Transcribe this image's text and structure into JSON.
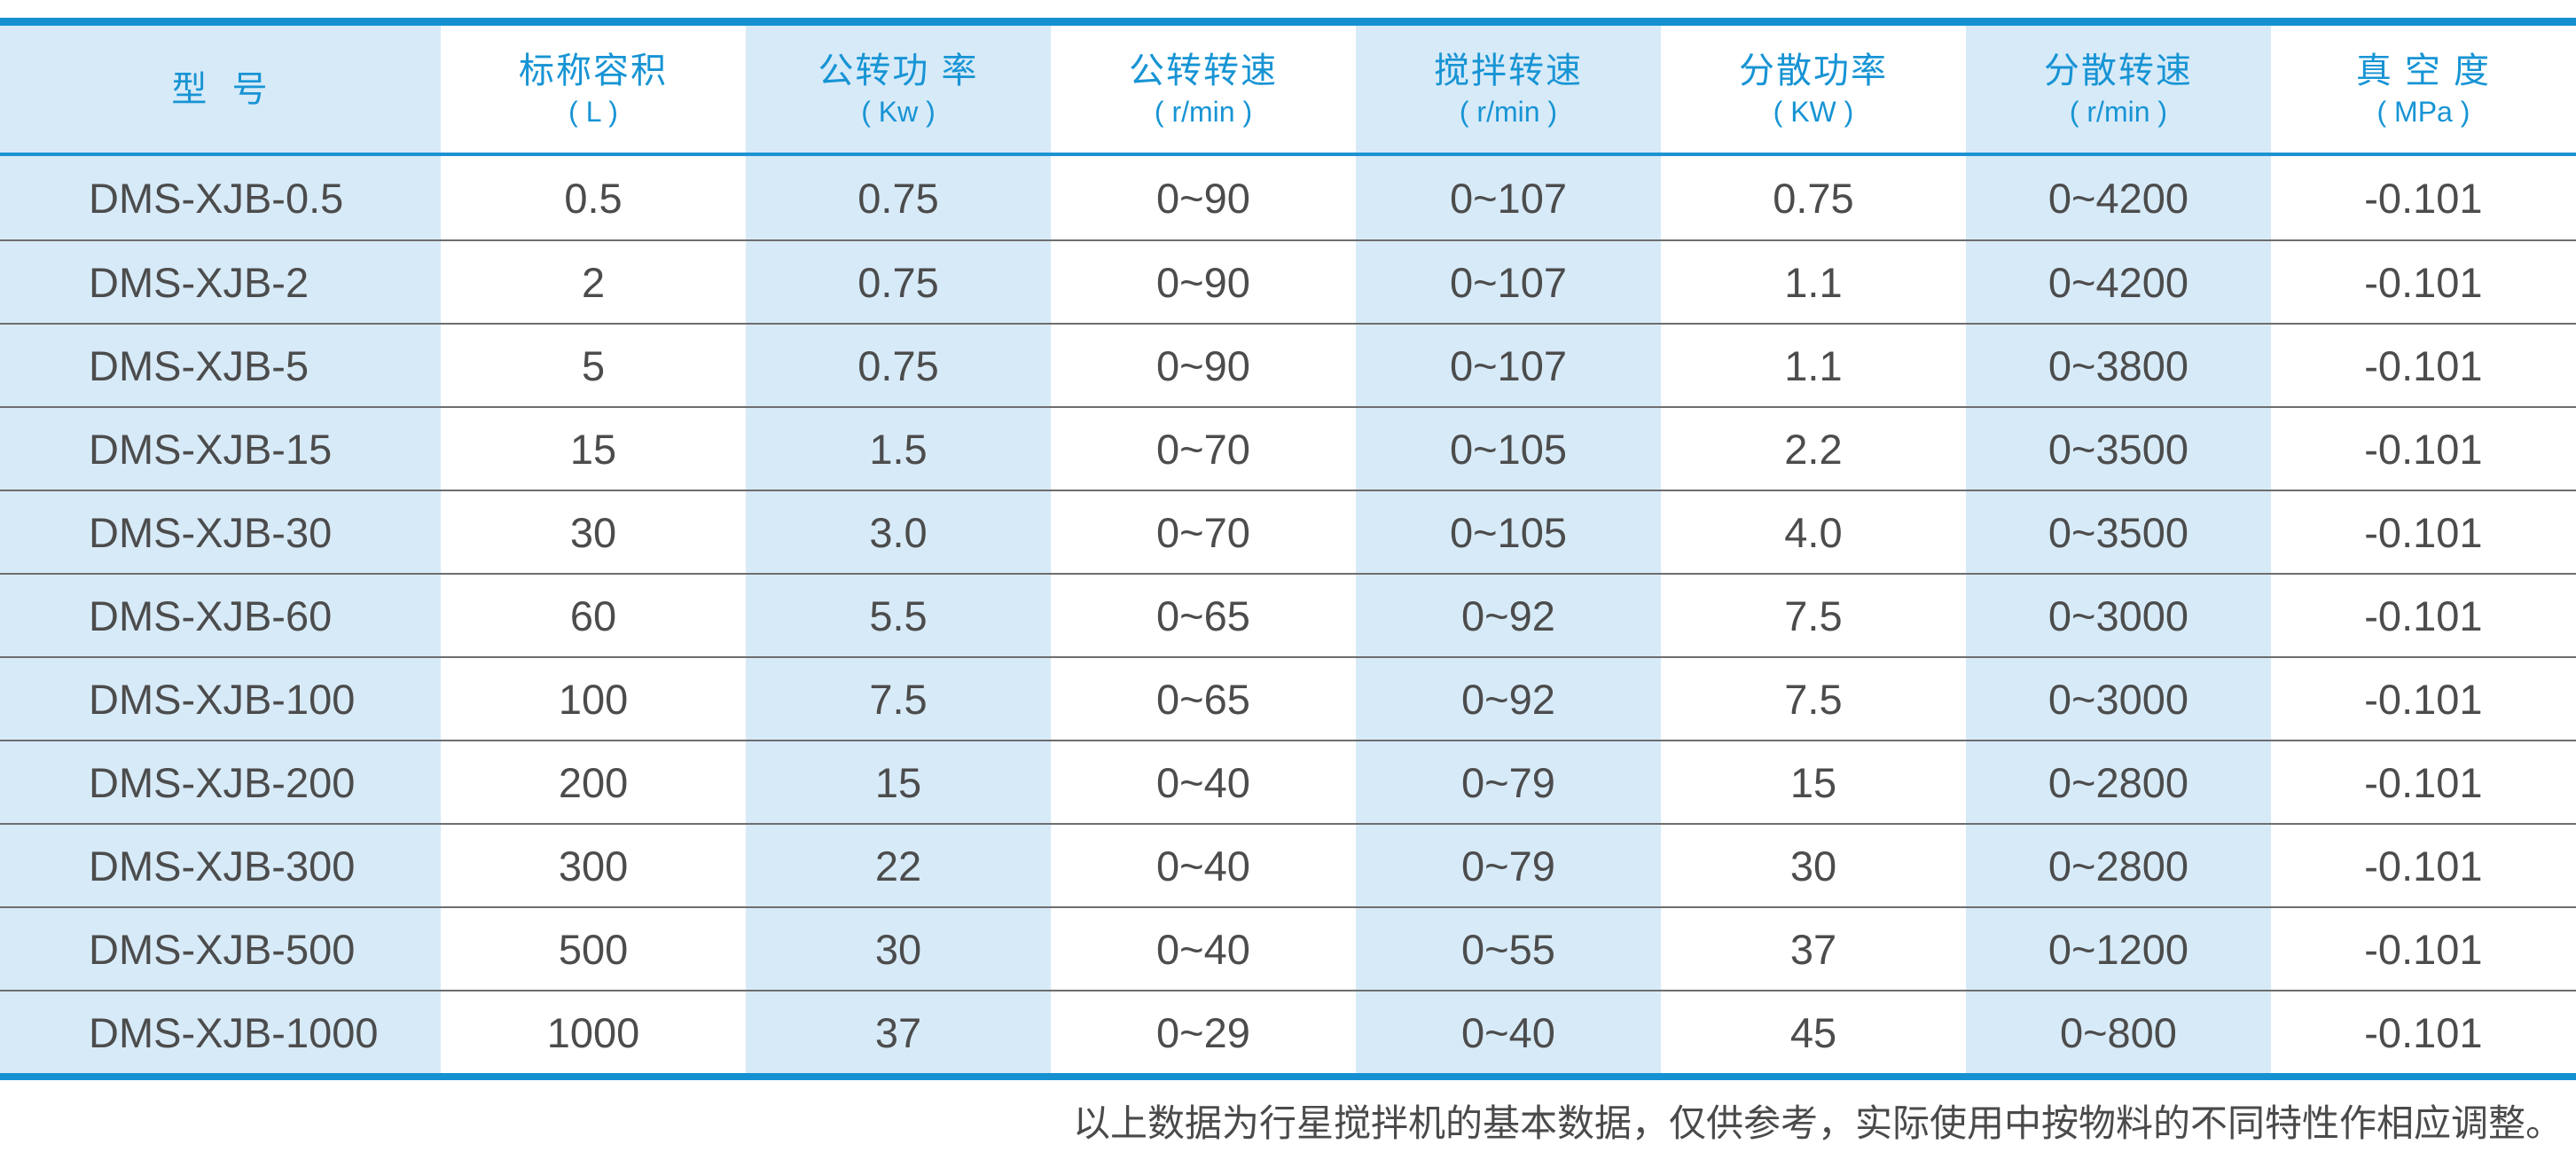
{
  "table": {
    "columns": [
      {
        "id": "model",
        "label": "型  号",
        "unit": ""
      },
      {
        "id": "volume",
        "label": "标称容积",
        "unit": "( L )"
      },
      {
        "id": "revolution-power",
        "label": "公转功 率",
        "unit": "( Kw )"
      },
      {
        "id": "revolution-speed",
        "label": "公转转速",
        "unit": "( r/min )"
      },
      {
        "id": "stirring-speed",
        "label": "搅拌转速",
        "unit": "( r/min )"
      },
      {
        "id": "dispersion-power",
        "label": "分散功率",
        "unit": "( KW )"
      },
      {
        "id": "dispersion-speed",
        "label": "分散转速",
        "unit": "( r/min )"
      },
      {
        "id": "vacuum",
        "label": "真 空 度",
        "unit": "( MPa )"
      }
    ],
    "rows": [
      [
        "DMS-XJB-0.5",
        "0.5",
        "0.75",
        "0~90",
        "0~107",
        "0.75",
        "0~4200",
        "-0.101"
      ],
      [
        "DMS-XJB-2",
        "2",
        "0.75",
        "0~90",
        "0~107",
        "1.1",
        "0~4200",
        "-0.101"
      ],
      [
        "DMS-XJB-5",
        "5",
        "0.75",
        "0~90",
        "0~107",
        "1.1",
        "0~3800",
        "-0.101"
      ],
      [
        "DMS-XJB-15",
        "15",
        "1.5",
        "0~70",
        "0~105",
        "2.2",
        "0~3500",
        "-0.101"
      ],
      [
        "DMS-XJB-30",
        "30",
        "3.0",
        "0~70",
        "0~105",
        "4.0",
        "0~3500",
        "-0.101"
      ],
      [
        "DMS-XJB-60",
        "60",
        "5.5",
        "0~65",
        "0~92",
        "7.5",
        "0~3000",
        "-0.101"
      ],
      [
        "DMS-XJB-100",
        "100",
        "7.5",
        "0~65",
        "0~92",
        "7.5",
        "0~3000",
        "-0.101"
      ],
      [
        "DMS-XJB-200",
        "200",
        "15",
        "0~40",
        "0~79",
        "15",
        "0~2800",
        "-0.101"
      ],
      [
        "DMS-XJB-300",
        "300",
        "22",
        "0~40",
        "0~79",
        "30",
        "0~2800",
        "-0.101"
      ],
      [
        "DMS-XJB-500",
        "500",
        "30",
        "0~40",
        "0~55",
        "37",
        "0~1200",
        "-0.101"
      ],
      [
        "DMS-XJB-1000",
        "1000",
        "37",
        "0~29",
        "0~40",
        "45",
        "0~800",
        "-0.101"
      ]
    ]
  },
  "footer": {
    "note": "以上数据为行星搅拌机的基本数据，仅供参考，实际使用中按物料的不同特性作相应调整。"
  },
  "colors": {
    "accent_blue_rule": "#1591d2",
    "header_text_blue": "#1794d4",
    "stripe_light_blue": "#d7eaf8",
    "body_text_gray": "#4c4c4c",
    "row_separator_gray": "#6e6e6e",
    "footnote_gray": "#4a4a4a"
  }
}
